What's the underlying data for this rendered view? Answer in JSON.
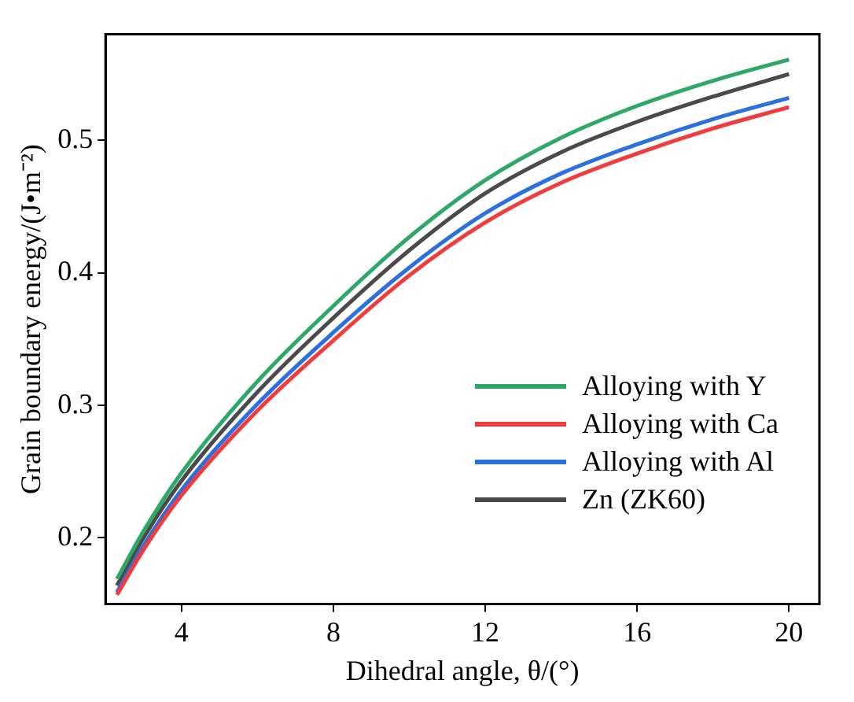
{
  "chart_data": {
    "type": "line",
    "xlabel": "Dihedral angle, θ/(°)",
    "ylabel": "Grain boundary energy/(J•m⁻²)",
    "x": [
      2.3,
      3,
      4,
      6,
      8,
      10,
      12,
      14,
      16,
      18,
      20
    ],
    "xlim": [
      2,
      20.8
    ],
    "xticks": [
      4,
      8,
      12,
      16,
      20
    ],
    "ylim": [
      0.15,
      0.58
    ],
    "yticks": [
      0.2,
      0.3,
      0.4,
      0.5
    ],
    "grid": false,
    "legend": "right",
    "marker": "none",
    "line_style": "solid",
    "series": [
      {
        "name": "Alloying with Y",
        "color": "#2ea867",
        "values": [
          0.169,
          0.205,
          0.249,
          0.318,
          0.375,
          0.427,
          0.47,
          0.502,
          0.526,
          0.545,
          0.561
        ]
      },
      {
        "name": "Alloying with Ca",
        "color": "#f03c3c",
        "values": [
          0.157,
          0.191,
          0.232,
          0.296,
          0.349,
          0.398,
          0.438,
          0.468,
          0.49,
          0.509,
          0.525
        ]
      },
      {
        "name": "Alloying with Al",
        "color": "#2b6fe0",
        "values": [
          0.159,
          0.194,
          0.236,
          0.301,
          0.355,
          0.404,
          0.445,
          0.475,
          0.497,
          0.516,
          0.532
        ]
      },
      {
        "name": "Zn (ZK60)",
        "color": "#4a4a4a",
        "values": [
          0.164,
          0.2,
          0.243,
          0.31,
          0.366,
          0.417,
          0.46,
          0.491,
          0.514,
          0.533,
          0.55
        ]
      }
    ]
  }
}
